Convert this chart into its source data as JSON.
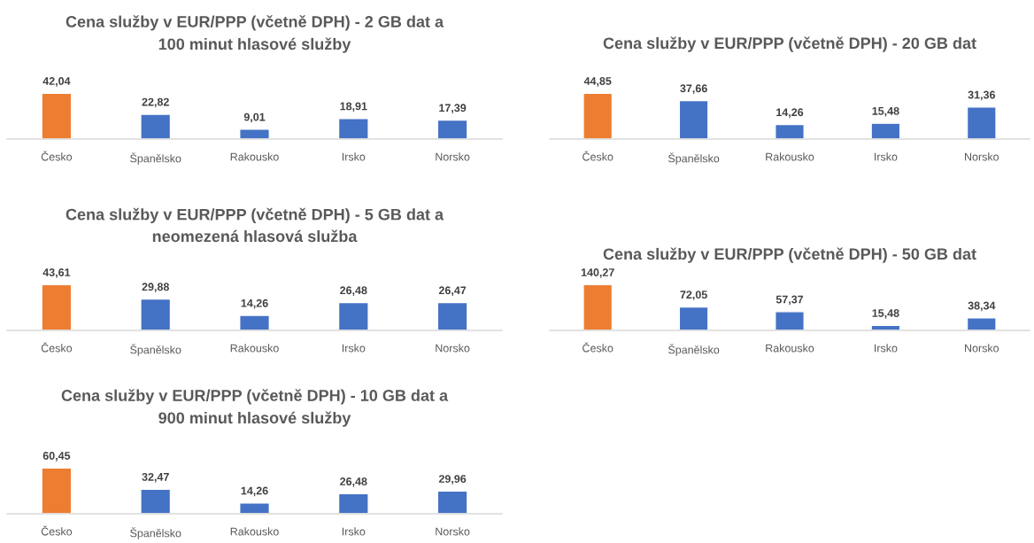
{
  "chart_data": [
    {
      "type": "bar",
      "title": "Cena služby v EUR/PPP (včetně DPH) - 2 GB dat a\n100 minut hlasové služby",
      "categories": [
        "Česko",
        "Španělsko",
        "Rakousko",
        "Irsko",
        "Norsko"
      ],
      "values": [
        42.04,
        22.82,
        9.01,
        18.91,
        17.39
      ],
      "value_labels": [
        "42,04",
        "22,82",
        "9,01",
        "18,91",
        "17,39"
      ],
      "colors": [
        "#ed7d31",
        "#4472c4",
        "#4472c4",
        "#4472c4",
        "#4472c4"
      ],
      "tick_labels": "x"
    },
    {
      "type": "bar",
      "title": "Cena služby v EUR/PPP (včetně DPH) - 20 GB dat",
      "categories": [
        "Česko",
        "Španělsko",
        "Rakousko",
        "Irsko",
        "Norsko"
      ],
      "values": [
        44.85,
        37.66,
        14.26,
        15.48,
        31.36
      ],
      "value_labels": [
        "44,85",
        "37,66",
        "14,26",
        "15,48",
        "31,36"
      ],
      "colors": [
        "#ed7d31",
        "#4472c4",
        "#4472c4",
        "#4472c4",
        "#4472c4"
      ],
      "tick_labels": "x"
    },
    {
      "type": "bar",
      "title": "Cena služby v EUR/PPP (včetně DPH) - 5 GB dat a\nneomezená hlasová služba",
      "categories": [
        "Česko",
        "Španělsko",
        "Rakousko",
        "Irsko",
        "Norsko"
      ],
      "values": [
        43.61,
        29.88,
        14.26,
        26.48,
        26.47
      ],
      "value_labels": [
        "43,61",
        "29,88",
        "14,26",
        "26,48",
        "26,47"
      ],
      "colors": [
        "#ed7d31",
        "#4472c4",
        "#4472c4",
        "#4472c4",
        "#4472c4"
      ],
      "tick_labels": "x"
    },
    {
      "type": "bar",
      "title": "Cena služby v EUR/PPP (včetně DPH) - 50 GB dat",
      "categories": [
        "Česko",
        "Španělsko",
        "Rakousko",
        "Irsko",
        "Norsko"
      ],
      "values": [
        140.27,
        72.05,
        57.37,
        15.48,
        38.34
      ],
      "value_labels": [
        "140,27",
        "72,05",
        "57,37",
        "15,48",
        "38,34"
      ],
      "colors": [
        "#ed7d31",
        "#4472c4",
        "#4472c4",
        "#4472c4",
        "#4472c4"
      ],
      "tick_labels": "x"
    },
    {
      "type": "bar",
      "title": "Cena služby v EUR/PPP (včetně DPH) - 10 GB dat a\n900 minut hlasové služby",
      "categories": [
        "Česko",
        "Španělsko",
        "Rakousko",
        "Irsko",
        "Norsko"
      ],
      "values": [
        60.45,
        32.47,
        14.26,
        26.48,
        29.96
      ],
      "value_labels": [
        "60,45",
        "32,47",
        "14,26",
        "26,48",
        "29,96"
      ],
      "colors": [
        "#ed7d31",
        "#4472c4",
        "#4472c4",
        "#4472c4",
        "#4472c4"
      ],
      "tick_labels": "x"
    }
  ]
}
